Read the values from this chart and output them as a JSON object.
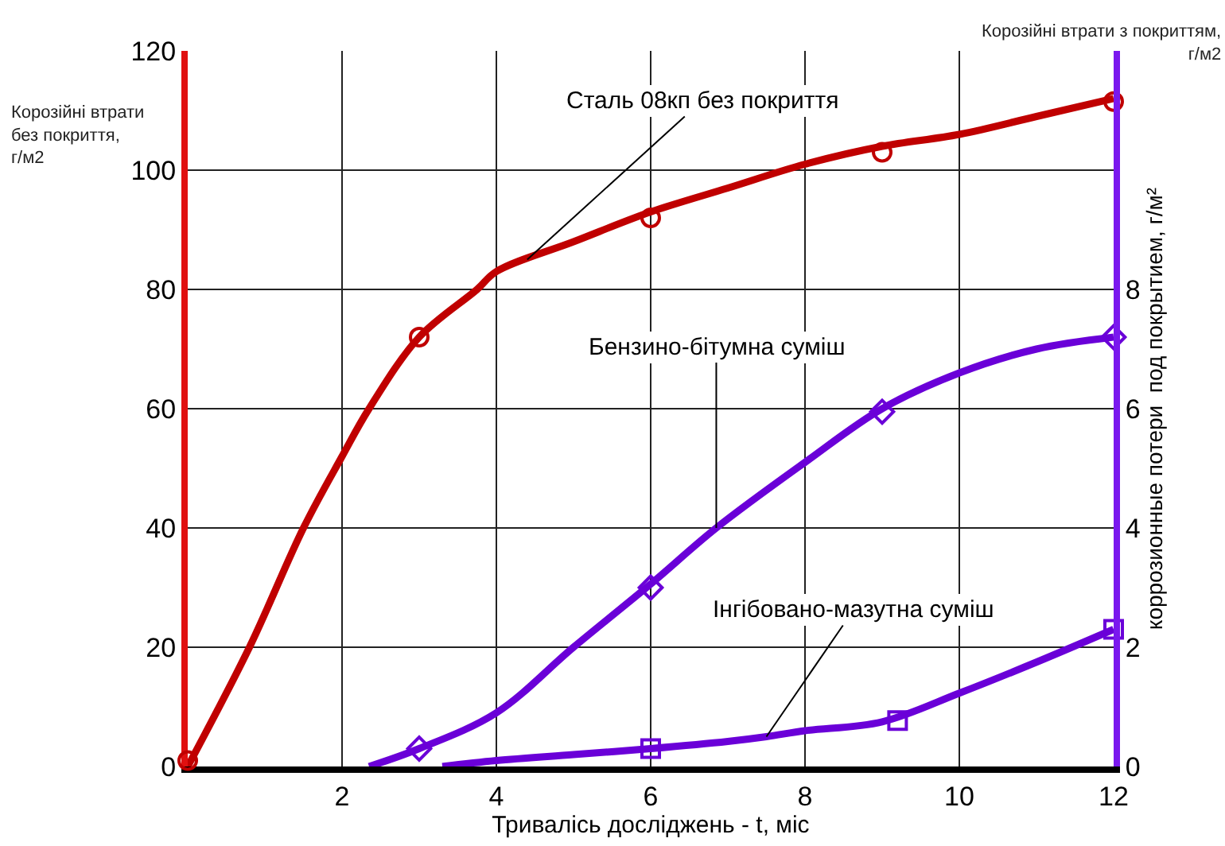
{
  "chart_data": {
    "type": "line",
    "xlabel": "Тривалісь досліджень - t, міс",
    "ylabel": "Корозійні втрати без покриття, г/м2",
    "y2label": "коррозионные потери  под покрытием, г/м²",
    "xlim": [
      0,
      12
    ],
    "xticks": [
      2,
      4,
      6,
      8,
      10,
      12
    ],
    "ylim": [
      0,
      120
    ],
    "yticks": [
      0,
      20,
      40,
      60,
      80,
      100,
      120
    ],
    "y2lim": [
      0,
      12
    ],
    "y2ticks": [
      0,
      2,
      4,
      6,
      8
    ],
    "grid": true,
    "series": [
      {
        "type": "line",
        "color": "#c00000",
        "marker": "none",
        "x": [
          0,
          0.8,
          1.5,
          2,
          2.35,
          3,
          3.75,
          4,
          5,
          6,
          7,
          8,
          9,
          10,
          11,
          12
        ],
        "values": [
          0,
          20,
          40,
          52,
          60,
          72,
          80,
          83,
          88,
          93,
          97,
          101,
          104,
          106,
          109,
          112
        ]
      },
      {
        "type": "scatter",
        "color": "#c00000",
        "marker": "circle",
        "x": [
          0,
          3,
          6,
          9,
          12
        ],
        "values": [
          1,
          72,
          92,
          103,
          111.5
        ]
      },
      {
        "type": "line",
        "color": "#6a00d8",
        "axis": "y2",
        "marker": "none",
        "x": [
          2.35,
          3,
          4,
          5,
          6,
          6.85,
          8,
          9,
          10,
          11,
          12
        ],
        "values": [
          0,
          0.3,
          0.9,
          2,
          3.06,
          4,
          5.1,
          6,
          6.6,
          7,
          7.2
        ]
      },
      {
        "type": "scatter",
        "color": "#6a00d8",
        "axis": "y2",
        "marker": "diamond",
        "x": [
          3,
          6,
          9,
          12
        ],
        "values": [
          0.3,
          3,
          5.95,
          7.2
        ]
      },
      {
        "type": "line",
        "color": "#6a00d8",
        "axis": "y2",
        "marker": "none",
        "x": [
          3.3,
          4,
          5,
          6,
          7,
          7.5,
          8,
          9,
          10,
          11,
          12
        ],
        "values": [
          0,
          0.1,
          0.2,
          0.3,
          0.42,
          0.5,
          0.6,
          0.75,
          1.23,
          1.75,
          2.3
        ]
      },
      {
        "type": "scatter",
        "color": "#6a00d8",
        "axis": "y2",
        "marker": "square",
        "x": [
          6,
          9.2,
          12
        ],
        "values": [
          0.3,
          0.77,
          2.3
        ]
      }
    ],
    "annotations": [
      {
        "text": "Сталь 08кп без покриття",
        "x": 4.4,
        "y": 85
      },
      {
        "text": "Бензино-бітумна суміш",
        "x": 6.85,
        "y": 40
      },
      {
        "text": "Інгібовано-мазутна суміш",
        "x": 7.5,
        "y": 5
      },
      "Корозійні втрати з покриттям, г/м2"
    ]
  }
}
